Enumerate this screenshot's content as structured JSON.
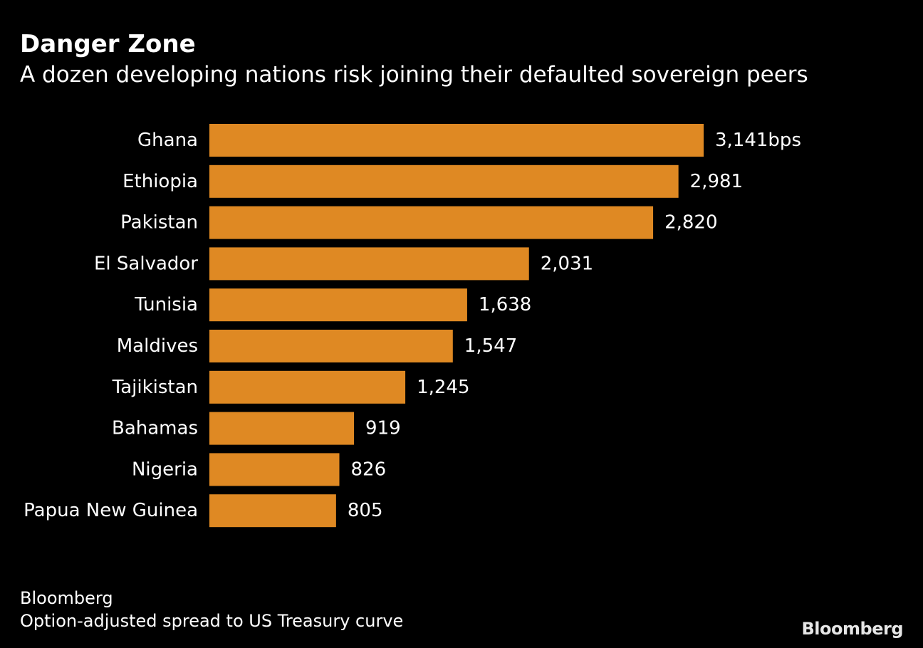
{
  "title": "Danger Zone",
  "subtitle": "A dozen developing nations risk joining their defaulted sovereign peers",
  "source": "Bloomberg",
  "note": "Option-adjusted spread to US Treasury curve",
  "brand": "Bloomberg",
  "colors": {
    "bar": "#df8923",
    "background": "#000000",
    "text": "#ffffff"
  },
  "chart_data": {
    "type": "bar",
    "orientation": "horizontal",
    "title": "Danger Zone",
    "subtitle": "A dozen developing nations risk joining their defaulted sovereign peers",
    "xlabel": "",
    "ylabel": "",
    "unit": "bps",
    "grid": false,
    "legend": "none",
    "xlim": [
      0,
      3141
    ],
    "categories": [
      "Ghana",
      "Ethiopia",
      "Pakistan",
      "El Salvador",
      "Tunisia",
      "Maldives",
      "Tajikistan",
      "Bahamas",
      "Nigeria",
      "Papua New Guinea"
    ],
    "values": [
      3141,
      2981,
      2820,
      2031,
      1638,
      1547,
      1245,
      919,
      826,
      805
    ],
    "value_labels": [
      "3,141bps",
      "2,981",
      "2,820",
      "2,031",
      "1,638",
      "1,547",
      "1,245",
      "919",
      "826",
      "805"
    ]
  }
}
